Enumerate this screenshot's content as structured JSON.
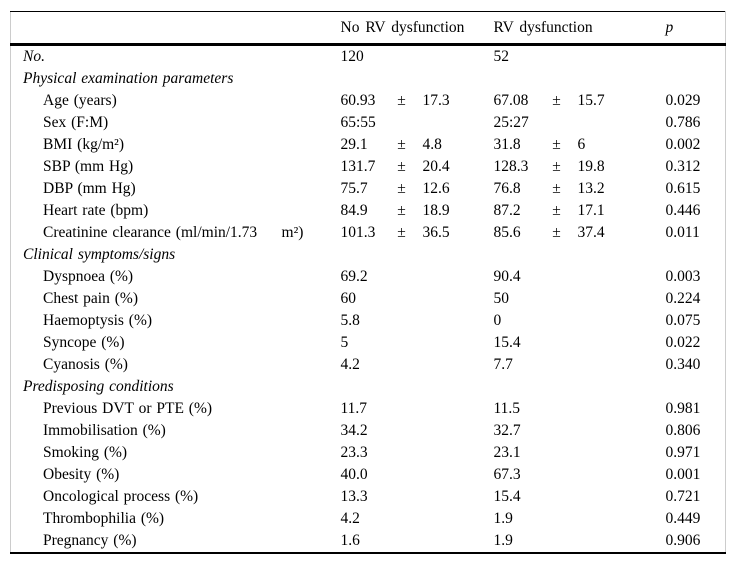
{
  "colors": {
    "text": "#000000",
    "rule": "#000000",
    "table_edge": "#cccccc",
    "background": "#ffffff"
  },
  "table": {
    "columns": {
      "label": "",
      "group1": "No RV dysfunction",
      "group2": "RV dysfunction",
      "p": "p"
    },
    "rows": [
      {
        "label": "No.",
        "italic": true,
        "indent": 0,
        "v1": "120",
        "pm1": "",
        "sd1": "",
        "v2": "52",
        "pm2": "",
        "sd2": "",
        "p": ""
      },
      {
        "label": "Physical examination parameters",
        "section": true,
        "indent": 0,
        "v1": "",
        "pm1": "",
        "sd1": "",
        "v2": "",
        "pm2": "",
        "sd2": "",
        "p": ""
      },
      {
        "label": "Age (years)",
        "indent": 1,
        "v1": "60.93",
        "pm1": "±",
        "sd1": "17.3",
        "v2": "67.08",
        "pm2": "±",
        "sd2": "15.7",
        "p": "0.029"
      },
      {
        "label": "Sex (F:M)",
        "indent": 1,
        "v1": "65:55",
        "pm1": "",
        "sd1": "",
        "v2": "25:27",
        "pm2": "",
        "sd2": "",
        "p": "0.786"
      },
      {
        "label": "BMI (kg/m²)",
        "indent": 1,
        "v1": "29.1",
        "pm1": "±",
        "sd1": "4.8",
        "v2": "31.8",
        "pm2": "±",
        "sd2": "6",
        "p": "0.002"
      },
      {
        "label": "SBP (mm Hg)",
        "indent": 1,
        "v1": "131.7",
        "pm1": "±",
        "sd1": "20.4",
        "v2": "128.3",
        "pm2": "±",
        "sd2": "19.8",
        "p": "0.312"
      },
      {
        "label": "DBP (mm Hg)",
        "indent": 1,
        "v1": "75.7",
        "pm1": "±",
        "sd1": "12.6",
        "v2": "76.8",
        "pm2": "±",
        "sd2": "13.2",
        "p": "0.615"
      },
      {
        "label": "Heart rate (bpm)",
        "indent": 1,
        "v1": "84.9",
        "pm1": "±",
        "sd1": "18.9",
        "v2": "87.2",
        "pm2": "±",
        "sd2": "17.1",
        "p": "0.446"
      },
      {
        "label": "Creatinine clearance (ml/min/1.73     m²)",
        "indent": 1,
        "v1": "101.3",
        "pm1": "±",
        "sd1": "36.5",
        "v2": "85.6",
        "pm2": "±",
        "sd2": "37.4",
        "p": "0.011"
      },
      {
        "label": "Clinical symptoms/signs",
        "section": true,
        "indent": 0,
        "v1": "",
        "pm1": "",
        "sd1": "",
        "v2": "",
        "pm2": "",
        "sd2": "",
        "p": ""
      },
      {
        "label": "Dyspnoea (%)",
        "indent": 1,
        "v1": "69.2",
        "pm1": "",
        "sd1": "",
        "v2": "90.4",
        "pm2": "",
        "sd2": "",
        "p": "0.003"
      },
      {
        "label": "Chest pain (%)",
        "indent": 1,
        "v1": "60",
        "pm1": "",
        "sd1": "",
        "v2": "50",
        "pm2": "",
        "sd2": "",
        "p": "0.224"
      },
      {
        "label": "Haemoptysis (%)",
        "indent": 1,
        "v1": "5.8",
        "pm1": "",
        "sd1": "",
        "v2": "0",
        "pm2": "",
        "sd2": "",
        "p": "0.075"
      },
      {
        "label": "Syncope (%)",
        "indent": 1,
        "v1": "5",
        "pm1": "",
        "sd1": "",
        "v2": "15.4",
        "pm2": "",
        "sd2": "",
        "p": "0.022"
      },
      {
        "label": "Cyanosis (%)",
        "indent": 1,
        "v1": "4.2",
        "pm1": "",
        "sd1": "",
        "v2": "7.7",
        "pm2": "",
        "sd2": "",
        "p": "0.340"
      },
      {
        "label": "Predisposing conditions",
        "section": true,
        "indent": 0,
        "v1": "",
        "pm1": "",
        "sd1": "",
        "v2": "",
        "pm2": "",
        "sd2": "",
        "p": ""
      },
      {
        "label": "Previous DVT or PTE (%)",
        "indent": 1,
        "v1": "11.7",
        "pm1": "",
        "sd1": "",
        "v2": "11.5",
        "pm2": "",
        "sd2": "",
        "p": "0.981"
      },
      {
        "label": "Immobilisation (%)",
        "indent": 1,
        "v1": "34.2",
        "pm1": "",
        "sd1": "",
        "v2": "32.7",
        "pm2": "",
        "sd2": "",
        "p": "0.806"
      },
      {
        "label": "Smoking (%)",
        "indent": 1,
        "v1": "23.3",
        "pm1": "",
        "sd1": "",
        "v2": "23.1",
        "pm2": "",
        "sd2": "",
        "p": "0.971"
      },
      {
        "label": "Obesity (%)",
        "indent": 1,
        "v1": "40.0",
        "pm1": "",
        "sd1": "",
        "v2": "67.3",
        "pm2": "",
        "sd2": "",
        "p": "0.001"
      },
      {
        "label": "Oncological process (%)",
        "indent": 1,
        "v1": "13.3",
        "pm1": "",
        "sd1": "",
        "v2": "15.4",
        "pm2": "",
        "sd2": "",
        "p": "0.721"
      },
      {
        "label": "Thrombophilia (%)",
        "indent": 1,
        "v1": "4.2",
        "pm1": "",
        "sd1": "",
        "v2": "1.9",
        "pm2": "",
        "sd2": "",
        "p": "0.449"
      },
      {
        "label": "Pregnancy (%)",
        "indent": 1,
        "v1": "1.6",
        "pm1": "",
        "sd1": "",
        "v2": "1.9",
        "pm2": "",
        "sd2": "",
        "p": "0.906"
      }
    ]
  }
}
